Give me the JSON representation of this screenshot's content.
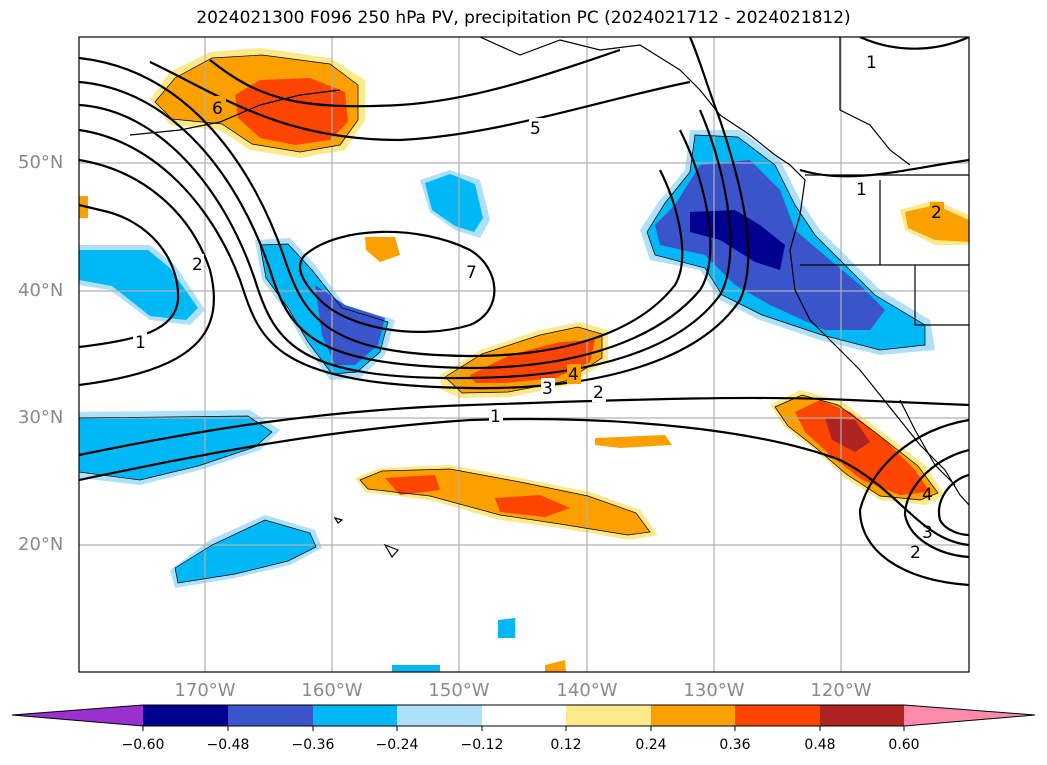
{
  "title": "2024021300 F096 250 hPa PV, precipitation PC (2024021712 - 2024021812)",
  "latitude_labels": [
    "50°N",
    "40°N",
    "30°N",
    "20°N"
  ],
  "longitude_labels": [
    "170°W",
    "160°W",
    "150°W",
    "140°W",
    "130°W",
    "120°W"
  ],
  "pv_contour_labels": [
    "6",
    "5",
    "1",
    "1",
    "2",
    "1",
    "7",
    "4",
    "3",
    "2",
    "1",
    "2",
    "4",
    "3",
    "2"
  ],
  "colorbar": {
    "ticks": [
      "−0.60",
      "−0.48",
      "−0.36",
      "−0.24",
      "−0.12",
      "0.12",
      "0.24",
      "0.36",
      "0.48",
      "0.60"
    ],
    "colors": [
      "#9b30d0",
      "#000090",
      "#3a55cc",
      "#00b8f5",
      "#aee0fa",
      "#ffffff",
      "#fce98a",
      "#fca000",
      "#fc4500",
      "#b02323",
      "#ff8aaa"
    ]
  }
}
